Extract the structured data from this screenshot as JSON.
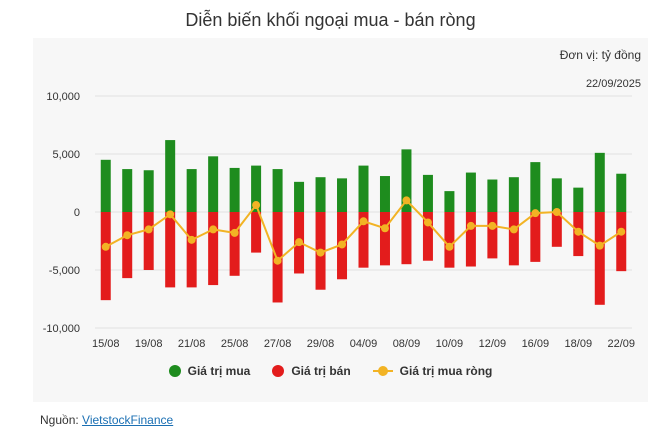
{
  "chart_data": {
    "type": "bar",
    "title": "Diễn biến khối ngoại mua - bán ròng",
    "unit_label": "Đơn vị: tỷ đồng",
    "date_label": "22/09/2025",
    "ylim": [
      -10000,
      10000
    ],
    "yticks": [
      10000,
      5000,
      0,
      -5000,
      -10000
    ],
    "ytick_labels": [
      "10,000",
      "5,000",
      "0",
      "-5,000",
      "-10,000"
    ],
    "grid": true,
    "legend_position": "bottom",
    "x_tick_labels": [
      "15/08",
      "19/08",
      "21/08",
      "25/08",
      "27/08",
      "29/08",
      "04/09",
      "08/09",
      "10/09",
      "12/09",
      "16/09",
      "18/09",
      "22/09"
    ],
    "series": [
      {
        "name": "Giá trị mua",
        "color": "#1e8c1e",
        "kind": "bar",
        "values": [
          4500,
          3700,
          3600,
          6200,
          3700,
          4800,
          3800,
          4000,
          3700,
          2600,
          3000,
          2900,
          4000,
          3100,
          5400,
          3200,
          1800,
          3400,
          2800,
          3000,
          4300,
          2900,
          2100,
          5100,
          3300
        ]
      },
      {
        "name": "Giá trị bán",
        "color": "#e31c1c",
        "kind": "bar",
        "values": [
          -7600,
          -5700,
          -5000,
          -6500,
          -6500,
          -6300,
          -5500,
          -3500,
          -7800,
          -5300,
          -6700,
          -5800,
          -4800,
          -4600,
          -4500,
          -4200,
          -4800,
          -4700,
          -4000,
          -4600,
          -4300,
          -3000,
          -3800,
          -8000,
          -5100
        ]
      },
      {
        "name": "Giá trị mua ròng",
        "color": "#f2b324",
        "kind": "line",
        "values": [
          -3000,
          -2000,
          -1500,
          -200,
          -2400,
          -1500,
          -1800,
          600,
          -4200,
          -2600,
          -3500,
          -2800,
          -800,
          -1400,
          1000,
          -900,
          -3000,
          -1200,
          -1200,
          -1500,
          -100,
          0,
          -1700,
          -2900,
          -1700
        ]
      }
    ]
  },
  "legend": {
    "buy_label": "Giá trị mua",
    "sell_label": "Giá trị bán",
    "net_label": "Giá trị mua ròng"
  },
  "source": {
    "prefix": "Nguồn: ",
    "link_text": "VietstockFinance"
  }
}
